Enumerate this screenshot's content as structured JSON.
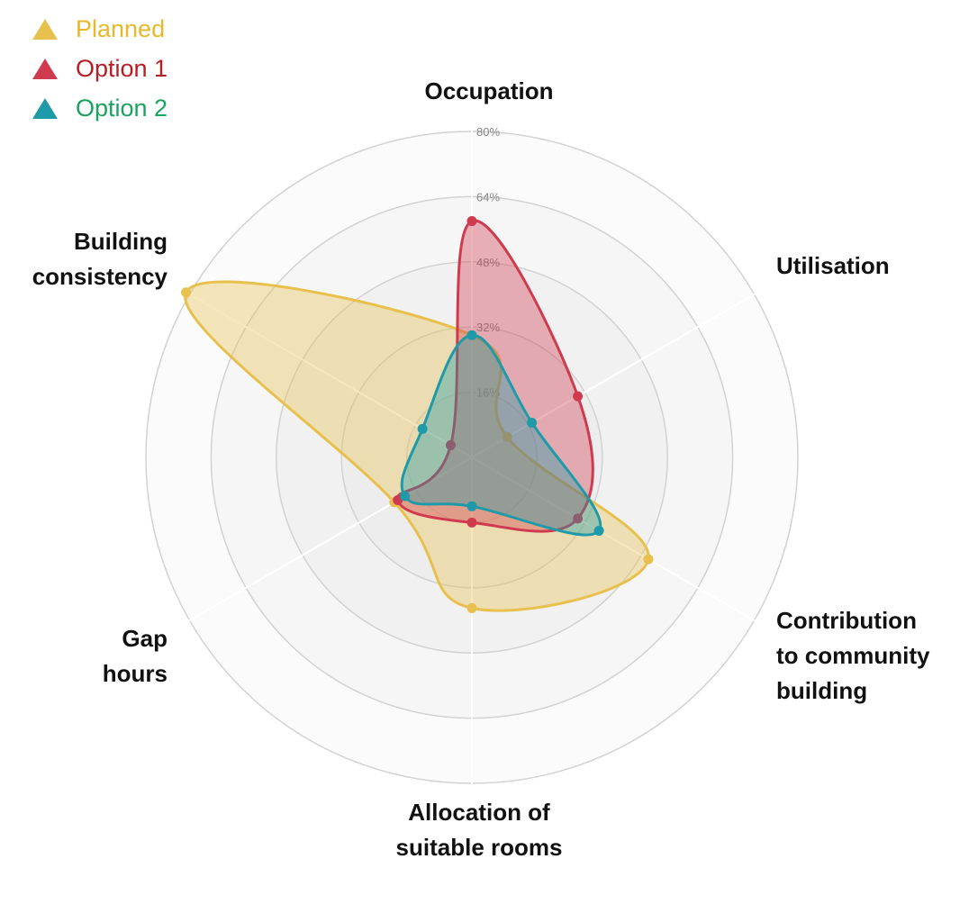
{
  "chart_data": {
    "type": "radar",
    "axes": [
      "Occupation",
      "Utilisation",
      "Contribution to community building",
      "Allocation of suitable rooms",
      "Gap hours",
      "Building consistency"
    ],
    "axis_label_lines": [
      [
        "Occupation"
      ],
      [
        "Utilisation"
      ],
      [
        "Contribution",
        "to community",
        "building"
      ],
      [
        "Allocation of",
        "suitable rooms"
      ],
      [
        "Gap",
        "hours"
      ],
      [
        "Building",
        "consistency"
      ]
    ],
    "r_ticks": [
      "16%",
      "32%",
      "48%",
      "64%",
      "80%"
    ],
    "r_range": [
      0,
      80
    ],
    "r_unit": "%",
    "grid": true,
    "legend_position": "top-left",
    "series": [
      {
        "name": "Planned",
        "color": "#E8C04E",
        "label_color": "#E6B82A",
        "values": [
          30,
          10,
          50,
          37,
          22,
          81
        ]
      },
      {
        "name": "Option 1",
        "color": "#D03A4E",
        "label_color": "#B81D24",
        "values": [
          58,
          30,
          30,
          16,
          21,
          6
        ]
      },
      {
        "name": "Option 2",
        "color": "#1E9AA8",
        "label_color": "#19A35F",
        "values": [
          30,
          17,
          36,
          12,
          19,
          14
        ]
      }
    ]
  }
}
